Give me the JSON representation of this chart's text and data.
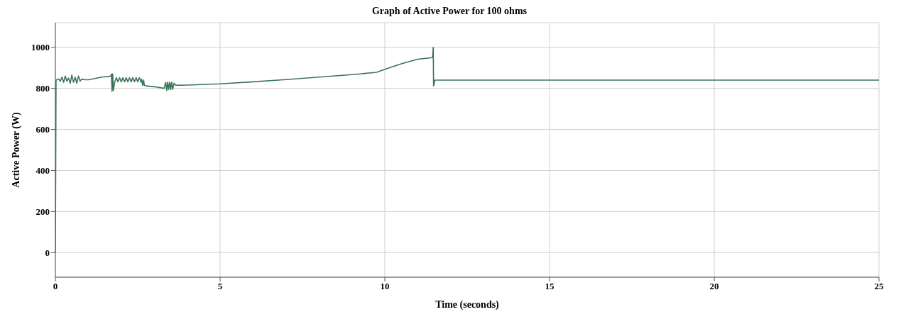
{
  "chart_data": {
    "type": "line",
    "title": "Graph of Active Power for 100 ohms",
    "xlabel": "Time (seconds)",
    "ylabel": "Active Power (W)",
    "xlim": [
      0,
      25
    ],
    "xticks": [
      0,
      5,
      10,
      15,
      20,
      25
    ],
    "ylim": [
      -120,
      1120
    ],
    "yticks": [
      0,
      200,
      400,
      600,
      800,
      1000
    ],
    "grid": true,
    "legend": false,
    "marker": "none",
    "line_style": "solid",
    "series": [
      {
        "color": "#3a7558",
        "x": [
          0,
          0.02,
          0.1,
          0.15,
          0.2,
          0.25,
          0.3,
          0.35,
          0.4,
          0.45,
          0.5,
          0.55,
          0.6,
          0.65,
          0.7,
          0.75,
          0.8,
          0.9,
          1.0,
          1.2,
          1.4,
          1.6,
          1.68,
          1.7,
          1.72,
          1.74,
          1.76,
          1.8,
          1.85,
          1.9,
          1.95,
          2.0,
          2.05,
          2.1,
          2.15,
          2.2,
          2.25,
          2.3,
          2.35,
          2.4,
          2.45,
          2.5,
          2.55,
          2.6,
          2.62,
          2.65,
          2.68,
          2.7,
          2.75,
          3.0,
          3.3,
          3.35,
          3.38,
          3.41,
          3.44,
          3.47,
          3.5,
          3.53,
          3.56,
          3.6,
          3.65,
          4,
          5,
          6,
          7,
          8,
          9,
          9.75,
          10,
          10.5,
          11,
          11.45,
          11.47,
          11.48,
          11.52,
          15,
          20,
          25
        ],
        "values": [
          0,
          840,
          845,
          835,
          855,
          830,
          860,
          835,
          850,
          825,
          865,
          830,
          855,
          825,
          860,
          835,
          845,
          842,
          842,
          848,
          855,
          858,
          860,
          870,
          785,
          870,
          790,
          830,
          852,
          832,
          852,
          832,
          852,
          832,
          852,
          832,
          852,
          832,
          852,
          832,
          852,
          832,
          852,
          830,
          845,
          815,
          840,
          815,
          812,
          808,
          800,
          830,
          790,
          830,
          795,
          830,
          795,
          830,
          795,
          825,
          815,
          816,
          822,
          832,
          843,
          855,
          867,
          878,
          893,
          920,
          942,
          950,
          1000,
          812,
          840,
          840,
          840,
          840
        ]
      }
    ]
  }
}
